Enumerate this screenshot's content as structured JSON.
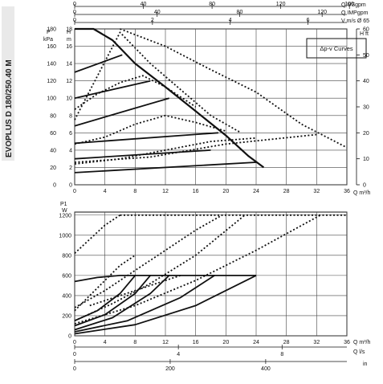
{
  "sidebar": {
    "model_label": "EVOPLUS D 180/250.40 M"
  },
  "chart_data": [
    {
      "type": "line",
      "legend": {
        "label": "Δp-v Curves"
      },
      "top_scales": [
        {
          "label": "Q USgpm",
          "ticks": [
            "0",
            "40",
            "80",
            "120",
            "160"
          ],
          "range": [
            0,
            158.5
          ]
        },
        {
          "label": "Q IMPgpm",
          "ticks": [
            "0",
            "40",
            "80",
            "120"
          ],
          "range": [
            0,
            132
          ]
        },
        {
          "label": "V m/s Ø 65",
          "ticks": [
            "0",
            "2",
            "4",
            "6"
          ],
          "range": [
            0,
            7.0
          ]
        }
      ],
      "left_axis": {
        "label_top": "P",
        "label_bottom": "kPa",
        "ticks": [
          "0",
          "20",
          "40",
          "60",
          "80",
          "100",
          "120",
          "140",
          "160",
          "180"
        ],
        "range": [
          0,
          180
        ]
      },
      "inner_axis": {
        "label_top": "H",
        "label_bottom": "m",
        "ticks": [
          "0",
          "2",
          "4",
          "6",
          "8",
          "10",
          "12",
          "14",
          "16",
          "18"
        ],
        "range": [
          0,
          18
        ]
      },
      "right_axis": {
        "label": "H ft",
        "ticks": [
          "0",
          "10",
          "20",
          "30",
          "40",
          "50",
          "60"
        ],
        "range": [
          0,
          60
        ]
      },
      "x_axis": {
        "label": "Q m³/h",
        "ticks": [
          "0",
          "4",
          "8",
          "12",
          "16",
          "20",
          "24",
          "28",
          "32",
          "36"
        ],
        "range": [
          0,
          36
        ]
      },
      "series": [
        {
          "style": "max-curve",
          "x": [
            0,
            2.5,
            5,
            8,
            12,
            16,
            20,
            23,
            25
          ],
          "y": [
            18,
            18,
            16.7,
            14,
            11.3,
            8.5,
            5.7,
            3.3,
            2
          ]
        },
        {
          "style": "solid",
          "x": [
            0,
            6.3
          ],
          "y": [
            13,
            15
          ]
        },
        {
          "style": "solid",
          "x": [
            0,
            10
          ],
          "y": [
            10,
            12
          ]
        },
        {
          "style": "solid",
          "x": [
            0,
            12.5
          ],
          "y": [
            6.8,
            10
          ]
        },
        {
          "style": "solid",
          "x": [
            0,
            19
          ],
          "y": [
            4.8,
            6
          ]
        },
        {
          "style": "solid",
          "x": [
            0,
            18
          ],
          "y": [
            3,
            4
          ]
        },
        {
          "style": "solid",
          "x": [
            0,
            24
          ],
          "y": [
            1.4,
            2.6
          ]
        },
        {
          "style": "dotted",
          "x": [
            0,
            6,
            10,
            14,
            18,
            22
          ],
          "y": [
            7.5,
            17.6,
            14,
            11,
            8,
            6
          ]
        },
        {
          "style": "dotted",
          "x": [
            0,
            3,
            6,
            9,
            12,
            16
          ],
          "y": [
            8.7,
            10.5,
            11.8,
            12.6,
            11.3,
            9
          ]
        },
        {
          "style": "dotted",
          "x": [
            0,
            4,
            8,
            12,
            16,
            20
          ],
          "y": [
            4.7,
            5.5,
            7,
            8,
            7.2,
            6.2
          ]
        },
        {
          "style": "dotted",
          "x": [
            0,
            6,
            12,
            18,
            24
          ],
          "y": [
            2.4,
            3,
            4,
            5,
            5.4
          ]
        },
        {
          "style": "dotted",
          "x": [
            0,
            10,
            20,
            32
          ],
          "y": [
            2.6,
            3.2,
            4.7,
            5.8
          ]
        },
        {
          "style": "dotted",
          "x": [
            6,
            12,
            18,
            24,
            30,
            36
          ],
          "y": [
            18,
            16,
            13.3,
            10.7,
            7,
            4.3
          ]
        }
      ]
    },
    {
      "type": "line",
      "y_axis": {
        "label_top": "P1",
        "label_bottom": "W",
        "ticks": [
          "0",
          "200",
          "400",
          "600",
          "800",
          "1000",
          "1200"
        ],
        "range": [
          0,
          1200
        ]
      },
      "x_axis": {
        "label": "Q m³/h",
        "ticks": [
          "0",
          "4",
          "8",
          "12",
          "16",
          "20",
          "24",
          "28",
          "32",
          "36"
        ],
        "range": [
          0,
          36
        ]
      },
      "bottom_scales": [
        {
          "label": "Q l/s",
          "ticks": [
            "0",
            "4",
            "8"
          ],
          "range": [
            0,
            10.5
          ]
        },
        {
          "label": "in",
          "ticks": [
            "0",
            "200",
            "400"
          ],
          "range": [
            0,
            570
          ]
        }
      ],
      "series": [
        {
          "style": "solid",
          "x": [
            0,
            3,
            6,
            7
          ],
          "y": [
            540,
            580,
            600,
            600
          ]
        },
        {
          "style": "solid",
          "x": [
            0,
            3,
            6,
            8
          ],
          "y": [
            150,
            250,
            420,
            600
          ]
        },
        {
          "style": "solid",
          "x": [
            0,
            4,
            8,
            10
          ],
          "y": [
            100,
            210,
            420,
            600
          ]
        },
        {
          "style": "solid",
          "x": [
            0,
            5,
            10,
            12.5
          ],
          "y": [
            60,
            180,
            420,
            600
          ]
        },
        {
          "style": "solid",
          "x": [
            0,
            7,
            14,
            18.5
          ],
          "y": [
            40,
            150,
            380,
            600
          ]
        },
        {
          "style": "solid",
          "x": [
            0,
            8,
            16,
            24
          ],
          "y": [
            20,
            110,
            300,
            600
          ]
        },
        {
          "style": "solid",
          "x": [
            7,
            24
          ],
          "y": [
            600,
            600
          ]
        },
        {
          "style": "dotted",
          "x": [
            0,
            2,
            4,
            6
          ],
          "y": [
            820,
            960,
            1100,
            1200
          ]
        },
        {
          "style": "dotted",
          "x": [
            0,
            2,
            4,
            6,
            8
          ],
          "y": [
            250,
            400,
            550,
            700,
            800
          ]
        },
        {
          "style": "dotted",
          "x": [
            0,
            4,
            8,
            12,
            16,
            19.5
          ],
          "y": [
            280,
            450,
            650,
            850,
            1050,
            1200
          ]
        },
        {
          "style": "dotted",
          "x": [
            0,
            5,
            10,
            16,
            22.5
          ],
          "y": [
            150,
            320,
            520,
            800,
            1200
          ]
        },
        {
          "style": "dotted",
          "x": [
            0,
            8,
            16,
            24,
            32.5
          ],
          "y": [
            120,
            300,
            550,
            850,
            1200
          ]
        },
        {
          "style": "dotted",
          "x": [
            6,
            36
          ],
          "y": [
            1200,
            1200
          ]
        },
        {
          "style": "dotted",
          "x": [
            2,
            8,
            14
          ],
          "y": [
            300,
            450,
            600
          ]
        }
      ]
    }
  ]
}
